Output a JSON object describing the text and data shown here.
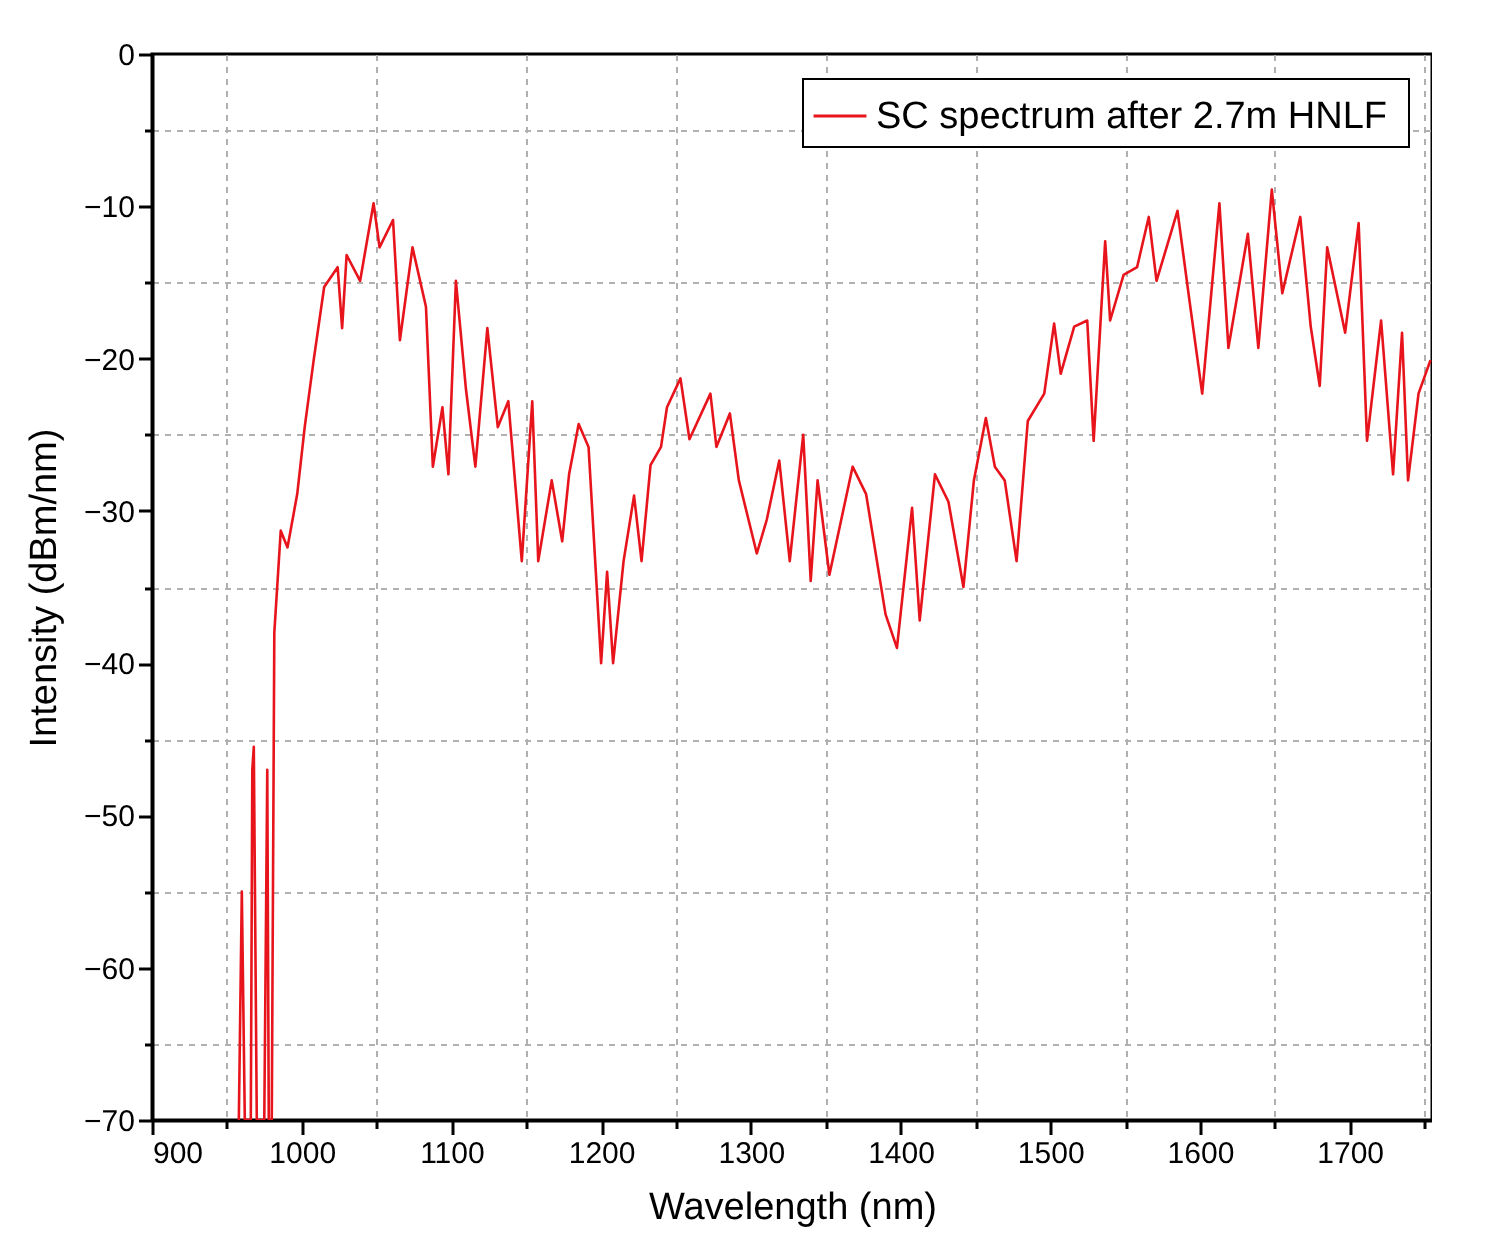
{
  "chart_data": {
    "type": "line",
    "xlabel": "Wavelength (nm)",
    "ylabel": "Intensity (dBm/nm)",
    "xlim": [
      900,
      1755
    ],
    "ylim": [
      -70,
      0
    ],
    "xticks": [
      900,
      {
        "value": 950,
        "label": null
      },
      1000,
      {
        "value": 1050,
        "label": null
      },
      1100,
      {
        "value": 1150,
        "label": null
      },
      1200,
      {
        "value": 1250,
        "label": null
      },
      1300,
      {
        "value": 1350,
        "label": null
      },
      1400,
      {
        "value": 1450,
        "label": null
      },
      1500,
      {
        "value": 1550,
        "label": null
      },
      1600,
      {
        "value": 1650,
        "label": null
      },
      1700,
      {
        "value": 1750,
        "label": null
      }
    ],
    "yticks": [
      -70,
      {
        "value": -65,
        "label": null
      },
      -60,
      {
        "value": -55,
        "label": null
      },
      -50,
      {
        "value": -45,
        "label": null
      },
      -40,
      {
        "value": -35,
        "label": null
      },
      -30,
      {
        "value": -25,
        "label": null
      },
      -20,
      {
        "value": -15,
        "label": null
      },
      -10,
      {
        "value": -5,
        "label": null
      },
      0
    ],
    "grid": true,
    "legend": "top right",
    "line_style": "solid",
    "series": [
      {
        "name": "SC  spectrum after 2.7m HNLF",
        "color": "#e8141c",
        "x": [
          958,
          960,
          962,
          966,
          967,
          968,
          970,
          975,
          977,
          978,
          980,
          981.7,
          986,
          990.5,
          997,
          1002,
          1008,
          1015,
          1024,
          1027,
          1030,
          1039,
          1048,
          1052,
          1061,
          1065.6,
          1074,
          1083,
          1087.6,
          1094,
          1098,
          1103,
          1109.7,
          1116,
          1124,
          1131,
          1138,
          1147,
          1154,
          1158,
          1167,
          1174,
          1178.6,
          1185,
          1191.6,
          1200,
          1204,
          1208,
          1215,
          1222,
          1227,
          1233,
          1240,
          1244,
          1253,
          1259,
          1273,
          1277,
          1286,
          1292,
          1304,
          1310.6,
          1319,
          1326,
          1335,
          1340,
          1344.6,
          1352.5,
          1368,
          1377,
          1390,
          1397.6,
          1407.7,
          1412.8,
          1423,
          1432,
          1442,
          1449,
          1457,
          1463,
          1469.6,
          1477.5,
          1485,
          1496,
          1502.6,
          1507,
          1516,
          1524.7,
          1529,
          1536.7,
          1540,
          1549,
          1558,
          1565.8,
          1571,
          1585,
          1593,
          1601.5,
          1613,
          1619,
          1632,
          1639,
          1648,
          1655,
          1667,
          1674,
          1680,
          1685,
          1697,
          1706,
          1711.6,
          1721,
          1729,
          1735,
          1739,
          1746,
          1754
        ],
        "values": [
          -70,
          -55,
          -70,
          -70,
          -47,
          -45.5,
          -70,
          -70,
          -47,
          -70,
          -70,
          -38,
          -31.3,
          -32.4,
          -28.9,
          -24.5,
          -20.1,
          -15.3,
          -14,
          -18,
          -13.2,
          -14.9,
          -9.8,
          -12.7,
          -10.9,
          -18.8,
          -12.7,
          -16.6,
          -27.1,
          -23.2,
          -27.6,
          -14.9,
          -22,
          -27.1,
          -18,
          -24.5,
          -22.8,
          -33.3,
          -22.8,
          -33.3,
          -28,
          -32,
          -27.6,
          -24.3,
          -25.8,
          -40,
          -34,
          -40,
          -33.3,
          -29,
          -33.3,
          -27,
          -25.8,
          -23.2,
          -21.3,
          -25.3,
          -22.3,
          -25.8,
          -23.6,
          -28,
          -32.8,
          -30.6,
          -26.7,
          -33.3,
          -25,
          -34.6,
          -28,
          -34.2,
          -27.1,
          -28.9,
          -36.8,
          -39,
          -29.8,
          -37.2,
          -27.6,
          -29.4,
          -35,
          -28,
          -23.9,
          -27.1,
          -28,
          -33.3,
          -24.1,
          -22.3,
          -17.7,
          -21,
          -17.9,
          -17.5,
          -25.4,
          -12.3,
          -17.5,
          -14.5,
          -14,
          -10.7,
          -14.9,
          -10.3,
          -16.2,
          -22.3,
          -9.8,
          -19.3,
          -11.8,
          -19.3,
          -8.9,
          -15.7,
          -10.7,
          -17.9,
          -21.8,
          -12.7,
          -18.3,
          -11.1,
          -25.4,
          -17.5,
          -27.6,
          -18.3,
          -28,
          -22.3,
          -20.1
        ]
      }
    ]
  }
}
